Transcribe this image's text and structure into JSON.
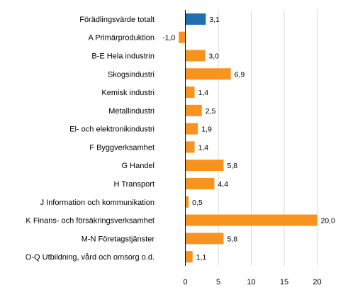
{
  "chart_data": {
    "type": "bar",
    "orientation": "horizontal",
    "title": "",
    "xlabel": "",
    "ylabel": "",
    "categories": [
      "Förädlingsvärde totalt",
      "A Primärproduktion",
      "B-E Hela industrin",
      "Skogsindustri",
      "Kemisk industri",
      "Metallindustri",
      "El- och elektronikindustri",
      "F Byggverksamhet",
      "G Handel",
      "H Transport",
      "J Information och kommunikation",
      "K Finans- och försäkringsverksamhet",
      "M-N Företagstjänster",
      "O-Q Utbildning, vård och omsorg o.d."
    ],
    "values": [
      3.1,
      -1.0,
      3.0,
      6.9,
      1.4,
      2.5,
      1.9,
      1.4,
      5.8,
      4.4,
      0.5,
      20.0,
      5.8,
      1.1
    ],
    "value_labels": [
      "3,1",
      "-1,0",
      "3,0",
      "6,9",
      "1,4",
      "2,5",
      "1,9",
      "1,4",
      "5,8",
      "4,4",
      "0,5",
      "20,0",
      "5,8",
      "1,1"
    ],
    "xlim": [
      -3.5,
      23.5
    ],
    "xticks": [
      0,
      5,
      10,
      15,
      20
    ],
    "xtick_labels": [
      "0",
      "5",
      "10",
      "15",
      "20"
    ],
    "grid": "vertical",
    "legend": "none",
    "colors": {
      "highlight": "#1f6fb2",
      "bar": "#f7931e"
    },
    "highlight_index": 0
  }
}
